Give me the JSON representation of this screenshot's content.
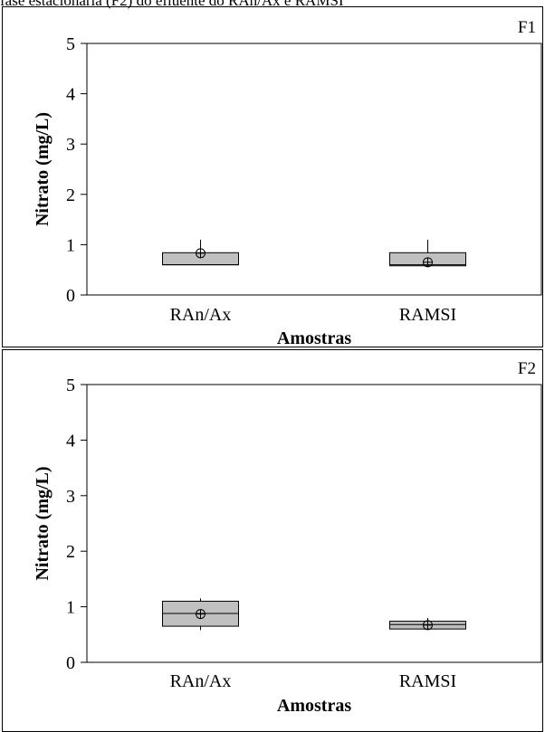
{
  "caption": "fase estacionária (F2) do efluente do RAn/Ax e RAMSI",
  "chart_data": [
    {
      "type": "box",
      "panel_label": "F1",
      "xlabel": "Amostras",
      "ylabel": "Nitrato (mg/L)",
      "ylim": [
        0,
        5
      ],
      "yticks": [
        0,
        1,
        2,
        3,
        4,
        5
      ],
      "grid": false,
      "categories": [
        "RAn/Ax",
        "RAMSI"
      ],
      "boxes": [
        {
          "category": "RAn/Ax",
          "whisker_low": 0.6,
          "q1": 0.6,
          "median": 0.6,
          "q3": 0.84,
          "whisker_high": 1.1,
          "mean": 0.83
        },
        {
          "category": "RAMSI",
          "whisker_low": 0.58,
          "q1": 0.58,
          "median": 0.6,
          "q3": 0.84,
          "whisker_high": 1.1,
          "mean": 0.65
        }
      ]
    },
    {
      "type": "box",
      "panel_label": "F2",
      "xlabel": "Amostras",
      "ylabel": "Nitrato (mg/L)",
      "ylim": [
        0,
        5
      ],
      "yticks": [
        0,
        1,
        2,
        3,
        4,
        5
      ],
      "grid": false,
      "categories": [
        "RAn/Ax",
        "RAMSI"
      ],
      "boxes": [
        {
          "category": "RAn/Ax",
          "whisker_low": 0.58,
          "q1": 0.65,
          "median": 0.88,
          "q3": 1.1,
          "whisker_high": 1.15,
          "mean": 0.87
        },
        {
          "category": "RAMSI",
          "whisker_low": 0.6,
          "q1": 0.6,
          "median": 0.68,
          "q3": 0.74,
          "whisker_high": 0.8,
          "mean": 0.67
        }
      ]
    }
  ],
  "colors": {
    "box_fill": "#c0c0c0",
    "line": "#000000",
    "background": "#ffffff"
  }
}
